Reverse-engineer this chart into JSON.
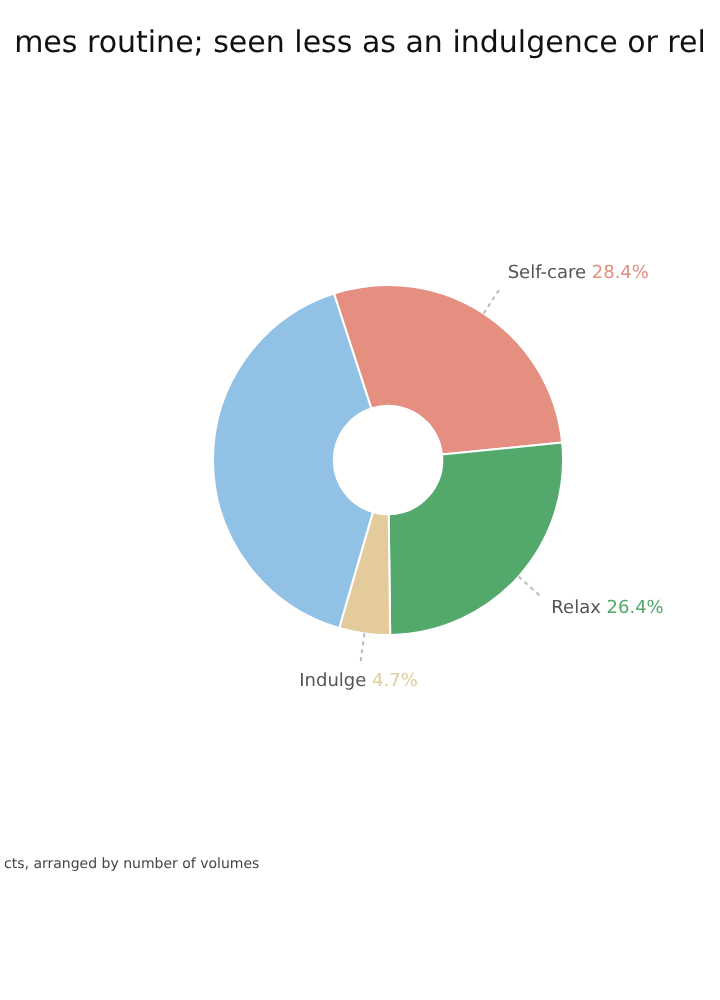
{
  "chart_data": {
    "type": "donut",
    "title": "mes routine; seen less as an indulgence or rel",
    "categories": [
      "Self-care",
      "Relax",
      "Indulge",
      null
    ],
    "values": [
      28.4,
      26.4,
      4.7,
      40.5
    ],
    "colors": [
      "#e48f80",
      "#52a96b",
      "#e3cb9b",
      "#92c1e6"
    ],
    "value_labels": [
      "28.4%",
      "26.4%",
      "4.7%",
      null
    ],
    "annotations": [
      "cts, arranged by number of volumes"
    ],
    "legend": false
  }
}
